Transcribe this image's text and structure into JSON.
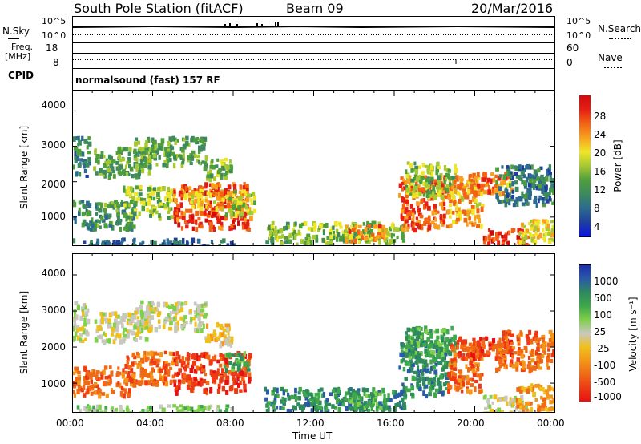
{
  "header": {
    "station": "South Pole Station (fitACF)",
    "beam": "Beam 09",
    "date": "20/Mar/2016"
  },
  "sky_panel": {
    "left_label": "N.Sky",
    "right_label": "N.Search",
    "ticks_left": [
      "10^5",
      "10^0"
    ],
    "ticks_right": [
      "10^5",
      "10^0"
    ]
  },
  "freq_panel": {
    "left_label_1": "Freq.",
    "left_label_2": "[MHz]",
    "ticks_left": [
      "18",
      "8"
    ],
    "ticks_right": [
      "60",
      "0"
    ],
    "right_label": "Nave"
  },
  "cpid_panel": {
    "label": "CPID",
    "text": "normalsound (fast) 157 RF"
  },
  "x_axis": {
    "ticks": [
      "00:00",
      "04:00",
      "08:00",
      "12:00",
      "16:00",
      "20:00",
      "00:00"
    ],
    "label": "Time UT"
  },
  "chart_data": [
    {
      "type": "heatmap",
      "xlabel": "",
      "ylabel": "Slant Range [km]",
      "y_ticks": [
        "4000",
        "3000",
        "2000",
        "1000"
      ],
      "ylim": [
        180,
        4600
      ],
      "xlim_hours": [
        0,
        24
      ],
      "colorbar": {
        "label": "Power [dB]",
        "ticks": [
          "28",
          "24",
          "20",
          "16",
          "12",
          "8",
          "4"
        ],
        "range": [
          0,
          30
        ],
        "colors": [
          "#0a14e6",
          "#1e3f9e",
          "#2d6a8f",
          "#3c8a5e",
          "#4f9e3c",
          "#a6c832",
          "#f0e628",
          "#f7a01e",
          "#f26414",
          "#e61e14",
          "#d20a0a"
        ]
      },
      "clusters": [
        {
          "t": [
            0.0,
            0.8
          ],
          "r": [
            2200,
            3300
          ],
          "v": 8
        },
        {
          "t": [
            1.0,
            3.8
          ],
          "r": [
            2200,
            3000
          ],
          "v": 12
        },
        {
          "t": [
            3.0,
            6.6
          ],
          "r": [
            2500,
            3300
          ],
          "v": 12
        },
        {
          "t": [
            6.5,
            7.9
          ],
          "r": [
            2100,
            2700
          ],
          "v": 14
        },
        {
          "t": [
            0.0,
            3.0
          ],
          "r": [
            700,
            1500
          ],
          "v": 10
        },
        {
          "t": [
            2.5,
            5.0
          ],
          "r": [
            1000,
            1900
          ],
          "v": 14
        },
        {
          "t": [
            5.0,
            8.8
          ],
          "r": [
            700,
            2000
          ],
          "v": 25
        },
        {
          "t": [
            5.5,
            8.5
          ],
          "r": [
            1300,
            1800
          ],
          "v": 20
        },
        {
          "t": [
            7.5,
            9.0
          ],
          "r": [
            1100,
            1800
          ],
          "v": 16
        },
        {
          "t": [
            9.5,
            16.5
          ],
          "r": [
            280,
            900
          ],
          "v": 14
        },
        {
          "t": [
            13.5,
            15.5
          ],
          "r": [
            350,
            800
          ],
          "v": 22
        },
        {
          "t": [
            0.0,
            8.0
          ],
          "r": [
            200,
            420
          ],
          "v": 6
        },
        {
          "t": [
            16.2,
            18.6
          ],
          "r": [
            700,
            2200
          ],
          "v": 24
        },
        {
          "t": [
            16.5,
            19.0
          ],
          "r": [
            1600,
            2600
          ],
          "v": 14
        },
        {
          "t": [
            18.6,
            20.3
          ],
          "r": [
            800,
            2100
          ],
          "v": 20
        },
        {
          "t": [
            19.0,
            21.8
          ],
          "r": [
            1700,
            2300
          ],
          "v": 22
        },
        {
          "t": [
            20.4,
            22.6
          ],
          "r": [
            200,
            700
          ],
          "v": 27
        },
        {
          "t": [
            21.0,
            24.0
          ],
          "r": [
            1400,
            2500
          ],
          "v": 8
        },
        {
          "t": [
            22.0,
            24.0
          ],
          "r": [
            300,
            1000
          ],
          "v": 18
        }
      ]
    },
    {
      "type": "heatmap",
      "xlabel": "Time UT",
      "ylabel": "Slant Range [km]",
      "y_ticks": [
        "4000",
        "3000",
        "2000",
        "1000"
      ],
      "ylim": [
        180,
        4600
      ],
      "xlim_hours": [
        0,
        24
      ],
      "colorbar": {
        "label": "Velocity [m s⁻¹]",
        "ticks": [
          "1000",
          "500",
          "100",
          "25",
          "-25",
          "-100",
          "-500",
          "-1000"
        ],
        "colors": [
          "#1b2fb0",
          "#2a5aa8",
          "#2f8a5e",
          "#3ea84a",
          "#7fd04a",
          "#c8c8c0",
          "#f0c01a",
          "#f49618",
          "#f06a16",
          "#ee3a14",
          "#e81010"
        ]
      },
      "clusters": [
        {
          "t": [
            0.0,
            0.8
          ],
          "r": [
            2200,
            3300
          ],
          "v": 5
        },
        {
          "t": [
            1.0,
            3.8
          ],
          "r": [
            2200,
            3000
          ],
          "v": 5
        },
        {
          "t": [
            3.0,
            6.6
          ],
          "r": [
            2500,
            3300
          ],
          "v": 5
        },
        {
          "t": [
            6.5,
            7.9
          ],
          "r": [
            2100,
            2700
          ],
          "v": 6
        },
        {
          "t": [
            0.0,
            3.0
          ],
          "r": [
            700,
            1500
          ],
          "v": 8
        },
        {
          "t": [
            2.5,
            5.0
          ],
          "r": [
            1000,
            1900
          ],
          "v": 8
        },
        {
          "t": [
            5.0,
            8.8
          ],
          "r": [
            800,
            1900
          ],
          "v": 9
        },
        {
          "t": [
            7.5,
            8.8
          ],
          "r": [
            1400,
            1900
          ],
          "v": 3
        },
        {
          "t": [
            9.5,
            16.5
          ],
          "r": [
            280,
            900
          ],
          "v": 2
        },
        {
          "t": [
            13.5,
            15.5
          ],
          "r": [
            350,
            800
          ],
          "v": 3
        },
        {
          "t": [
            0.0,
            8.0
          ],
          "r": [
            200,
            420
          ],
          "v": 4
        },
        {
          "t": [
            16.2,
            18.6
          ],
          "r": [
            700,
            2200
          ],
          "v": 2
        },
        {
          "t": [
            16.5,
            19.0
          ],
          "r": [
            1600,
            2600
          ],
          "v": 3
        },
        {
          "t": [
            18.6,
            20.3
          ],
          "r": [
            800,
            2100
          ],
          "v": 8
        },
        {
          "t": [
            19.0,
            21.8
          ],
          "r": [
            1700,
            2300
          ],
          "v": 9
        },
        {
          "t": [
            20.4,
            22.6
          ],
          "r": [
            200,
            700
          ],
          "v": 5
        },
        {
          "t": [
            21.0,
            24.0
          ],
          "r": [
            1400,
            2500
          ],
          "v": 8
        },
        {
          "t": [
            22.0,
            24.0
          ],
          "r": [
            300,
            1000
          ],
          "v": 7
        }
      ]
    }
  ]
}
